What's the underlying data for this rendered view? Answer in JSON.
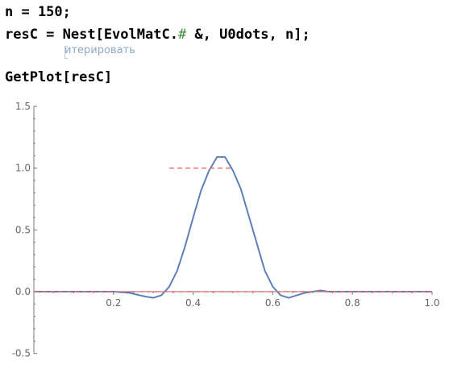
{
  "notebook": {
    "line1": "n = 150;",
    "line2_a": "resC = Nest[EvolMatC.",
    "line2_slot": "#",
    "line2_b": " &, U0dots, n];",
    "hint": "итерировать",
    "line4": "GetPlot[resC]"
  },
  "colors": {
    "curve": "#5e81b5",
    "reference": "#f26b6b",
    "axis": "#777777"
  },
  "chart_data": {
    "type": "line",
    "xlim": [
      0,
      1.0
    ],
    "ylim": [
      -0.5,
      1.5
    ],
    "x_ticks": [
      "0.2",
      "0.4",
      "0.6",
      "0.8",
      "1.0"
    ],
    "y_ticks": [
      "1.5",
      "1.0",
      "0.5",
      "0.0",
      "-0.5"
    ],
    "series": [
      {
        "style": "solid",
        "x": [
          0.0,
          0.2,
          0.24,
          0.28,
          0.3,
          0.32,
          0.34,
          0.36,
          0.38,
          0.4,
          0.42,
          0.44,
          0.46,
          0.48,
          0.5,
          0.52,
          0.54,
          0.56,
          0.58,
          0.6,
          0.62,
          0.64,
          0.66,
          0.68,
          0.7,
          0.72,
          0.74,
          0.8,
          1.0
        ],
        "y": [
          0.0,
          0.0,
          -0.01,
          -0.04,
          -0.05,
          -0.03,
          0.04,
          0.17,
          0.37,
          0.6,
          0.82,
          0.98,
          1.09,
          1.09,
          0.98,
          0.83,
          0.61,
          0.39,
          0.17,
          0.04,
          -0.03,
          -0.05,
          -0.03,
          -0.01,
          0.0,
          0.01,
          0.0,
          0.0,
          0.0
        ]
      },
      {
        "style": "dashed",
        "x": [
          0.34,
          0.5
        ],
        "y": [
          1.0,
          1.0
        ]
      },
      {
        "style": "dashed",
        "x": [
          0.0,
          1.0
        ],
        "y": [
          0.0,
          0.0
        ]
      }
    ]
  }
}
